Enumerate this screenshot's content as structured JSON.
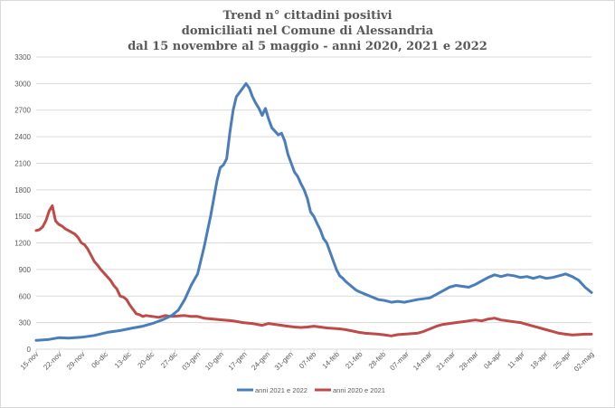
{
  "chart_data": {
    "type": "line",
    "title": [
      "Trend n° cittadini positivi",
      "domiciliati nel Comune di Alessandria",
      "dal 15 novembre al 5 maggio - anni 2020, 2021 e 2022"
    ],
    "xlabel": "",
    "ylabel": "",
    "ylim": [
      0,
      3300
    ],
    "yticks": [
      0,
      300,
      600,
      900,
      1200,
      1500,
      1800,
      2100,
      2400,
      2700,
      3000,
      3300
    ],
    "xticks": [
      "15-nov",
      "22-nov",
      "29-nov",
      "06-dic",
      "13-dic",
      "20-dic",
      "27-dic",
      "03-gen",
      "10-gen",
      "17-gen",
      "24-gen",
      "31-gen",
      "07-feb",
      "14-feb",
      "21-feb",
      "28-feb",
      "07-mar",
      "14-mar",
      "21-mar",
      "28-mar",
      "04-apr",
      "11-apr",
      "18-apr",
      "25-apr",
      "02-mag"
    ],
    "x_day_count": 172,
    "grid": true,
    "legend_position": "bottom",
    "series": [
      {
        "name": "anni 2021 e 2022",
        "color": "#4a7ebb",
        "points": [
          [
            0,
            100
          ],
          [
            4,
            110
          ],
          [
            7,
            130
          ],
          [
            10,
            125
          ],
          [
            14,
            135
          ],
          [
            18,
            155
          ],
          [
            22,
            190
          ],
          [
            26,
            210
          ],
          [
            30,
            240
          ],
          [
            33,
            260
          ],
          [
            36,
            290
          ],
          [
            39,
            330
          ],
          [
            42,
            380
          ],
          [
            44,
            440
          ],
          [
            46,
            560
          ],
          [
            48,
            720
          ],
          [
            50,
            850
          ],
          [
            52,
            1150
          ],
          [
            54,
            1500
          ],
          [
            56,
            1900
          ],
          [
            57,
            2050
          ],
          [
            58,
            2080
          ],
          [
            59,
            2150
          ],
          [
            60,
            2450
          ],
          [
            61,
            2700
          ],
          [
            62,
            2850
          ],
          [
            63,
            2900
          ],
          [
            64,
            2950
          ],
          [
            65,
            3000
          ],
          [
            66,
            2950
          ],
          [
            67,
            2850
          ],
          [
            68,
            2780
          ],
          [
            69,
            2720
          ],
          [
            70,
            2640
          ],
          [
            71,
            2720
          ],
          [
            72,
            2600
          ],
          [
            73,
            2500
          ],
          [
            74,
            2460
          ],
          [
            75,
            2420
          ],
          [
            76,
            2440
          ],
          [
            77,
            2350
          ],
          [
            78,
            2200
          ],
          [
            79,
            2100
          ],
          [
            80,
            2000
          ],
          [
            81,
            1950
          ],
          [
            82,
            1870
          ],
          [
            83,
            1800
          ],
          [
            84,
            1700
          ],
          [
            85,
            1550
          ],
          [
            86,
            1500
          ],
          [
            87,
            1420
          ],
          [
            88,
            1350
          ],
          [
            89,
            1250
          ],
          [
            90,
            1200
          ],
          [
            91,
            1100
          ],
          [
            92,
            1000
          ],
          [
            93,
            900
          ],
          [
            94,
            830
          ],
          [
            95,
            800
          ],
          [
            96,
            760
          ],
          [
            97,
            730
          ],
          [
            98,
            700
          ],
          [
            99,
            670
          ],
          [
            100,
            650
          ],
          [
            102,
            620
          ],
          [
            104,
            590
          ],
          [
            106,
            560
          ],
          [
            108,
            550
          ],
          [
            110,
            530
          ],
          [
            112,
            540
          ],
          [
            114,
            530
          ],
          [
            116,
            545
          ],
          [
            118,
            560
          ],
          [
            120,
            570
          ],
          [
            122,
            580
          ],
          [
            124,
            620
          ],
          [
            126,
            660
          ],
          [
            128,
            700
          ],
          [
            130,
            720
          ],
          [
            132,
            710
          ],
          [
            134,
            700
          ],
          [
            136,
            730
          ],
          [
            138,
            770
          ],
          [
            140,
            810
          ],
          [
            142,
            840
          ],
          [
            144,
            820
          ],
          [
            146,
            840
          ],
          [
            148,
            830
          ],
          [
            150,
            810
          ],
          [
            152,
            820
          ],
          [
            154,
            800
          ],
          [
            156,
            820
          ],
          [
            158,
            800
          ],
          [
            160,
            810
          ],
          [
            162,
            830
          ],
          [
            164,
            850
          ],
          [
            166,
            820
          ],
          [
            168,
            780
          ],
          [
            170,
            700
          ],
          [
            172,
            640
          ]
        ]
      },
      {
        "name": "anni 2020 e 2021",
        "color": "#be4b48",
        "points": [
          [
            0,
            1340
          ],
          [
            1,
            1350
          ],
          [
            2,
            1380
          ],
          [
            3,
            1450
          ],
          [
            4,
            1560
          ],
          [
            5,
            1620
          ],
          [
            6,
            1450
          ],
          [
            7,
            1410
          ],
          [
            8,
            1390
          ],
          [
            9,
            1360
          ],
          [
            10,
            1340
          ],
          [
            11,
            1320
          ],
          [
            12,
            1300
          ],
          [
            13,
            1260
          ],
          [
            14,
            1200
          ],
          [
            15,
            1180
          ],
          [
            16,
            1130
          ],
          [
            17,
            1060
          ],
          [
            18,
            990
          ],
          [
            19,
            950
          ],
          [
            20,
            900
          ],
          [
            21,
            860
          ],
          [
            22,
            820
          ],
          [
            23,
            780
          ],
          [
            24,
            720
          ],
          [
            25,
            680
          ],
          [
            26,
            600
          ],
          [
            27,
            590
          ],
          [
            28,
            560
          ],
          [
            29,
            500
          ],
          [
            30,
            450
          ],
          [
            31,
            400
          ],
          [
            32,
            390
          ],
          [
            33,
            370
          ],
          [
            34,
            380
          ],
          [
            36,
            370
          ],
          [
            38,
            360
          ],
          [
            40,
            380
          ],
          [
            42,
            370
          ],
          [
            44,
            375
          ],
          [
            46,
            380
          ],
          [
            48,
            370
          ],
          [
            50,
            370
          ],
          [
            52,
            350
          ],
          [
            55,
            340
          ],
          [
            58,
            330
          ],
          [
            61,
            320
          ],
          [
            64,
            300
          ],
          [
            67,
            290
          ],
          [
            70,
            270
          ],
          [
            72,
            290
          ],
          [
            74,
            280
          ],
          [
            76,
            270
          ],
          [
            78,
            260
          ],
          [
            80,
            250
          ],
          [
            82,
            245
          ],
          [
            84,
            250
          ],
          [
            86,
            260
          ],
          [
            88,
            250
          ],
          [
            90,
            240
          ],
          [
            92,
            235
          ],
          [
            94,
            230
          ],
          [
            96,
            220
          ],
          [
            98,
            205
          ],
          [
            100,
            190
          ],
          [
            102,
            180
          ],
          [
            104,
            175
          ],
          [
            106,
            170
          ],
          [
            108,
            160
          ],
          [
            110,
            150
          ],
          [
            112,
            165
          ],
          [
            114,
            170
          ],
          [
            116,
            175
          ],
          [
            118,
            180
          ],
          [
            120,
            200
          ],
          [
            122,
            230
          ],
          [
            124,
            260
          ],
          [
            126,
            280
          ],
          [
            128,
            290
          ],
          [
            130,
            300
          ],
          [
            132,
            310
          ],
          [
            134,
            320
          ],
          [
            136,
            330
          ],
          [
            138,
            320
          ],
          [
            140,
            340
          ],
          [
            142,
            350
          ],
          [
            144,
            330
          ],
          [
            146,
            320
          ],
          [
            148,
            310
          ],
          [
            150,
            300
          ],
          [
            152,
            280
          ],
          [
            154,
            260
          ],
          [
            156,
            240
          ],
          [
            158,
            220
          ],
          [
            160,
            200
          ],
          [
            162,
            180
          ],
          [
            164,
            170
          ],
          [
            166,
            160
          ],
          [
            168,
            165
          ],
          [
            170,
            170
          ],
          [
            172,
            170
          ]
        ]
      }
    ]
  }
}
